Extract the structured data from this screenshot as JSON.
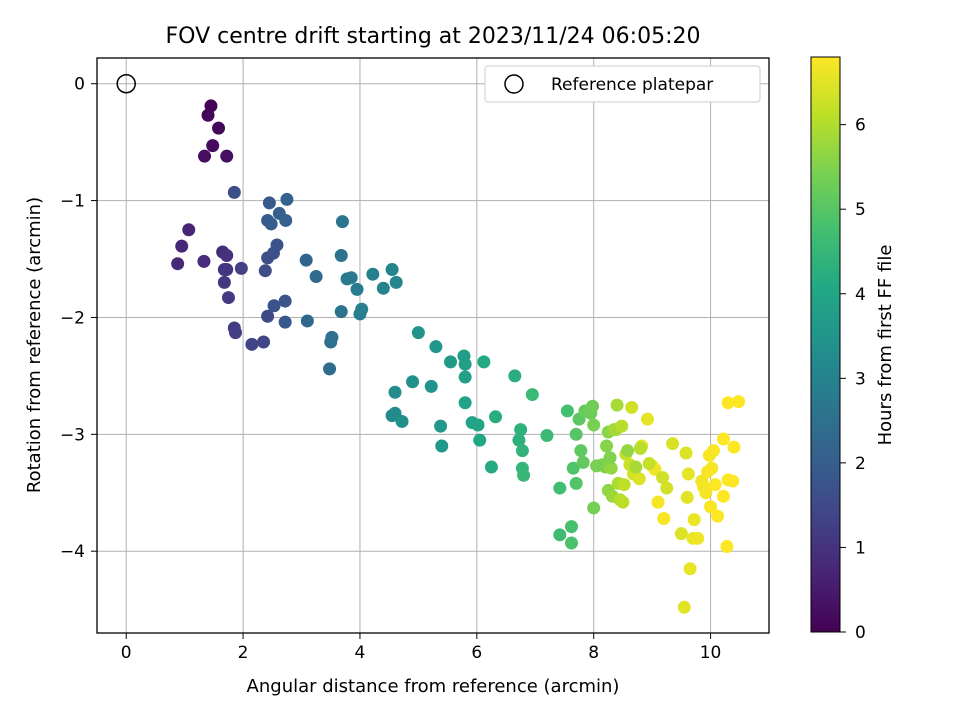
{
  "chart_data": {
    "type": "scatter",
    "title": "FOV centre drift starting at 2023/11/24 06:05:20",
    "xlabel": "Angular distance from reference (arcmin)",
    "ylabel": "Rotation from reference (arcmin)",
    "xlim": [
      -0.5,
      11
    ],
    "ylim": [
      -4.7,
      0.22
    ],
    "xticks": [
      0,
      2,
      4,
      6,
      8,
      10
    ],
    "yticks": [
      0,
      -1,
      -2,
      -3,
      -4
    ],
    "grid": true,
    "legend": {
      "placement": "upper-right",
      "entries": [
        "Reference platepar"
      ]
    },
    "reference_point": {
      "x": 0,
      "y": 0,
      "label": "Reference platepar"
    },
    "colorbar": {
      "label": "Hours from first FF file",
      "range": [
        0,
        6.8
      ],
      "ticks": [
        0,
        1,
        2,
        3,
        4,
        5,
        6
      ],
      "colormap": "viridis"
    },
    "series": [
      {
        "columns": [
          "x",
          "y",
          "hours"
        ],
        "points": [
          [
            1.45,
            -0.19,
            0.05
          ],
          [
            1.4,
            -0.27,
            0.1
          ],
          [
            1.58,
            -0.38,
            0.15
          ],
          [
            1.48,
            -0.53,
            0.2
          ],
          [
            1.34,
            -0.62,
            0.25
          ],
          [
            1.72,
            -0.62,
            0.3
          ],
          [
            1.07,
            -1.25,
            0.7
          ],
          [
            0.95,
            -1.39,
            0.75
          ],
          [
            0.88,
            -1.54,
            0.8
          ],
          [
            1.33,
            -1.52,
            0.85
          ],
          [
            1.65,
            -1.44,
            0.9
          ],
          [
            1.72,
            -1.47,
            0.95
          ],
          [
            1.68,
            -1.59,
            1.0
          ],
          [
            1.72,
            -1.59,
            1.05
          ],
          [
            1.68,
            -1.7,
            1.1
          ],
          [
            1.75,
            -1.83,
            1.15
          ],
          [
            1.85,
            -0.93,
            1.6
          ],
          [
            1.85,
            -2.09,
            1.2
          ],
          [
            1.87,
            -2.13,
            1.25
          ],
          [
            1.97,
            -1.58,
            1.3
          ],
          [
            2.15,
            -2.23,
            1.35
          ],
          [
            2.35,
            -2.21,
            1.4
          ],
          [
            2.42,
            -1.99,
            1.5
          ],
          [
            2.38,
            -1.6,
            1.55
          ],
          [
            2.42,
            -1.49,
            1.6
          ],
          [
            2.52,
            -1.45,
            1.65
          ],
          [
            2.58,
            -1.38,
            1.7
          ],
          [
            2.53,
            -1.9,
            1.75
          ],
          [
            2.72,
            -1.86,
            1.8
          ],
          [
            2.72,
            -2.04,
            1.85
          ],
          [
            2.45,
            -1.02,
            1.9
          ],
          [
            2.42,
            -1.17,
            1.95
          ],
          [
            2.48,
            -1.2,
            2.0
          ],
          [
            2.62,
            -1.11,
            2.05
          ],
          [
            2.73,
            -1.17,
            2.1
          ],
          [
            2.75,
            -0.99,
            2.15
          ],
          [
            3.08,
            -1.51,
            2.2
          ],
          [
            3.1,
            -2.03,
            2.3
          ],
          [
            3.25,
            -1.65,
            2.35
          ],
          [
            3.48,
            -2.44,
            2.4
          ],
          [
            3.5,
            -2.21,
            2.45
          ],
          [
            3.52,
            -2.17,
            2.5
          ],
          [
            3.68,
            -1.47,
            2.55
          ],
          [
            3.68,
            -1.95,
            2.6
          ],
          [
            3.7,
            -1.18,
            2.65
          ],
          [
            3.78,
            -1.67,
            2.7
          ],
          [
            3.85,
            -1.66,
            2.75
          ],
          [
            3.95,
            -1.76,
            2.8
          ],
          [
            4.0,
            -1.97,
            2.85
          ],
          [
            4.03,
            -1.93,
            2.9
          ],
          [
            4.22,
            -1.63,
            2.95
          ],
          [
            4.4,
            -1.75,
            3.0
          ],
          [
            4.55,
            -1.59,
            3.05
          ],
          [
            4.62,
            -1.7,
            3.1
          ],
          [
            4.55,
            -2.84,
            3.2
          ],
          [
            4.6,
            -2.82,
            3.25
          ],
          [
            4.6,
            -2.64,
            3.3
          ],
          [
            4.72,
            -2.89,
            3.35
          ],
          [
            4.9,
            -2.55,
            3.4
          ],
          [
            5.0,
            -2.13,
            3.45
          ],
          [
            5.22,
            -2.59,
            3.5
          ],
          [
            5.3,
            -2.25,
            3.55
          ],
          [
            5.38,
            -2.93,
            3.6
          ],
          [
            5.4,
            -3.1,
            3.65
          ],
          [
            5.55,
            -2.38,
            3.7
          ],
          [
            5.78,
            -2.33,
            3.75
          ],
          [
            5.8,
            -2.4,
            3.8
          ],
          [
            5.8,
            -2.51,
            3.85
          ],
          [
            5.8,
            -2.73,
            3.9
          ],
          [
            5.92,
            -2.9,
            3.95
          ],
          [
            6.02,
            -2.92,
            4.0
          ],
          [
            6.05,
            -3.05,
            4.05
          ],
          [
            6.12,
            -2.38,
            4.1
          ],
          [
            6.25,
            -3.28,
            4.15
          ],
          [
            6.32,
            -2.85,
            4.2
          ],
          [
            6.65,
            -2.5,
            4.25
          ],
          [
            6.72,
            -3.05,
            4.3
          ],
          [
            6.75,
            -2.96,
            4.35
          ],
          [
            6.78,
            -3.14,
            4.4
          ],
          [
            6.78,
            -3.29,
            4.45
          ],
          [
            6.8,
            -3.35,
            4.5
          ],
          [
            6.95,
            -2.66,
            4.55
          ],
          [
            7.2,
            -3.01,
            4.6
          ],
          [
            7.42,
            -3.46,
            4.7
          ],
          [
            7.42,
            -3.86,
            4.65
          ],
          [
            7.55,
            -2.8,
            4.75
          ],
          [
            7.62,
            -3.79,
            4.8
          ],
          [
            7.62,
            -3.93,
            4.85
          ],
          [
            7.65,
            -3.29,
            4.9
          ],
          [
            7.7,
            -3.42,
            4.95
          ],
          [
            7.7,
            -3.0,
            5.0
          ],
          [
            7.75,
            -2.87,
            5.05
          ],
          [
            7.78,
            -3.14,
            5.1
          ],
          [
            7.82,
            -3.24,
            5.15
          ],
          [
            7.85,
            -2.8,
            5.2
          ],
          [
            7.95,
            -2.82,
            5.25
          ],
          [
            7.98,
            -2.76,
            5.3
          ],
          [
            8.0,
            -3.63,
            5.35
          ],
          [
            8.0,
            -2.92,
            5.4
          ],
          [
            8.15,
            -3.26,
            5.45
          ],
          [
            8.2,
            -3.28,
            5.5
          ],
          [
            8.22,
            -3.1,
            5.55
          ],
          [
            8.25,
            -2.98,
            5.6
          ],
          [
            8.25,
            -3.48,
            5.65
          ],
          [
            8.3,
            -3.29,
            5.7
          ],
          [
            8.32,
            -3.53,
            5.75
          ],
          [
            8.35,
            -2.96,
            5.8
          ],
          [
            8.38,
            -2.96,
            5.85
          ],
          [
            8.4,
            -2.75,
            5.9
          ],
          [
            8.42,
            -3.42,
            5.95
          ],
          [
            8.45,
            -3.56,
            6.0
          ],
          [
            8.48,
            -2.93,
            6.05
          ],
          [
            8.5,
            -3.58,
            6.1
          ],
          [
            8.52,
            -3.43,
            6.15
          ],
          [
            8.55,
            -3.17,
            6.2
          ],
          [
            8.62,
            -3.26,
            6.25
          ],
          [
            8.65,
            -2.77,
            6.3
          ],
          [
            8.68,
            -3.34,
            6.35
          ],
          [
            8.7,
            -3.3,
            6.4
          ],
          [
            8.78,
            -3.38,
            6.45
          ],
          [
            8.82,
            -3.1,
            6.5
          ],
          [
            8.92,
            -2.87,
            6.55
          ],
          [
            9.0,
            -3.27,
            6.6
          ],
          [
            9.05,
            -3.3,
            6.65
          ],
          [
            9.1,
            -3.58,
            6.7
          ],
          [
            9.2,
            -3.72,
            6.75
          ],
          [
            8.05,
            -3.27,
            5.4
          ],
          [
            8.28,
            -3.2,
            5.5
          ],
          [
            8.58,
            -3.14,
            5.7
          ],
          [
            8.72,
            -3.28,
            5.9
          ],
          [
            8.8,
            -3.12,
            6.05
          ],
          [
            8.95,
            -3.25,
            6.2
          ],
          [
            9.18,
            -3.37,
            6.3
          ],
          [
            9.25,
            -3.46,
            6.35
          ],
          [
            9.35,
            -3.08,
            6.4
          ],
          [
            9.5,
            -3.85,
            6.45
          ],
          [
            9.55,
            -4.48,
            6.5
          ],
          [
            9.58,
            -3.16,
            6.45
          ],
          [
            9.6,
            -3.54,
            6.5
          ],
          [
            9.62,
            -3.34,
            6.55
          ],
          [
            9.65,
            -4.15,
            6.55
          ],
          [
            9.7,
            -3.89,
            6.6
          ],
          [
            9.72,
            -3.73,
            6.6
          ],
          [
            9.78,
            -3.89,
            6.65
          ],
          [
            9.85,
            -3.4,
            6.65
          ],
          [
            9.88,
            -3.45,
            6.7
          ],
          [
            9.92,
            -3.5,
            6.7
          ],
          [
            9.95,
            -3.32,
            6.7
          ],
          [
            9.98,
            -3.18,
            6.75
          ],
          [
            10.0,
            -3.62,
            6.75
          ],
          [
            10.02,
            -3.29,
            6.75
          ],
          [
            10.05,
            -3.14,
            6.75
          ],
          [
            10.08,
            -3.43,
            6.8
          ],
          [
            10.12,
            -3.7,
            6.8
          ],
          [
            10.22,
            -3.04,
            6.8
          ],
          [
            10.22,
            -3.53,
            6.8
          ],
          [
            10.28,
            -3.96,
            6.8
          ],
          [
            10.3,
            -2.73,
            6.8
          ],
          [
            10.3,
            -3.39,
            6.8
          ],
          [
            10.38,
            -3.4,
            6.8
          ],
          [
            10.4,
            -3.11,
            6.8
          ],
          [
            10.48,
            -2.72,
            6.8
          ]
        ]
      }
    ]
  }
}
